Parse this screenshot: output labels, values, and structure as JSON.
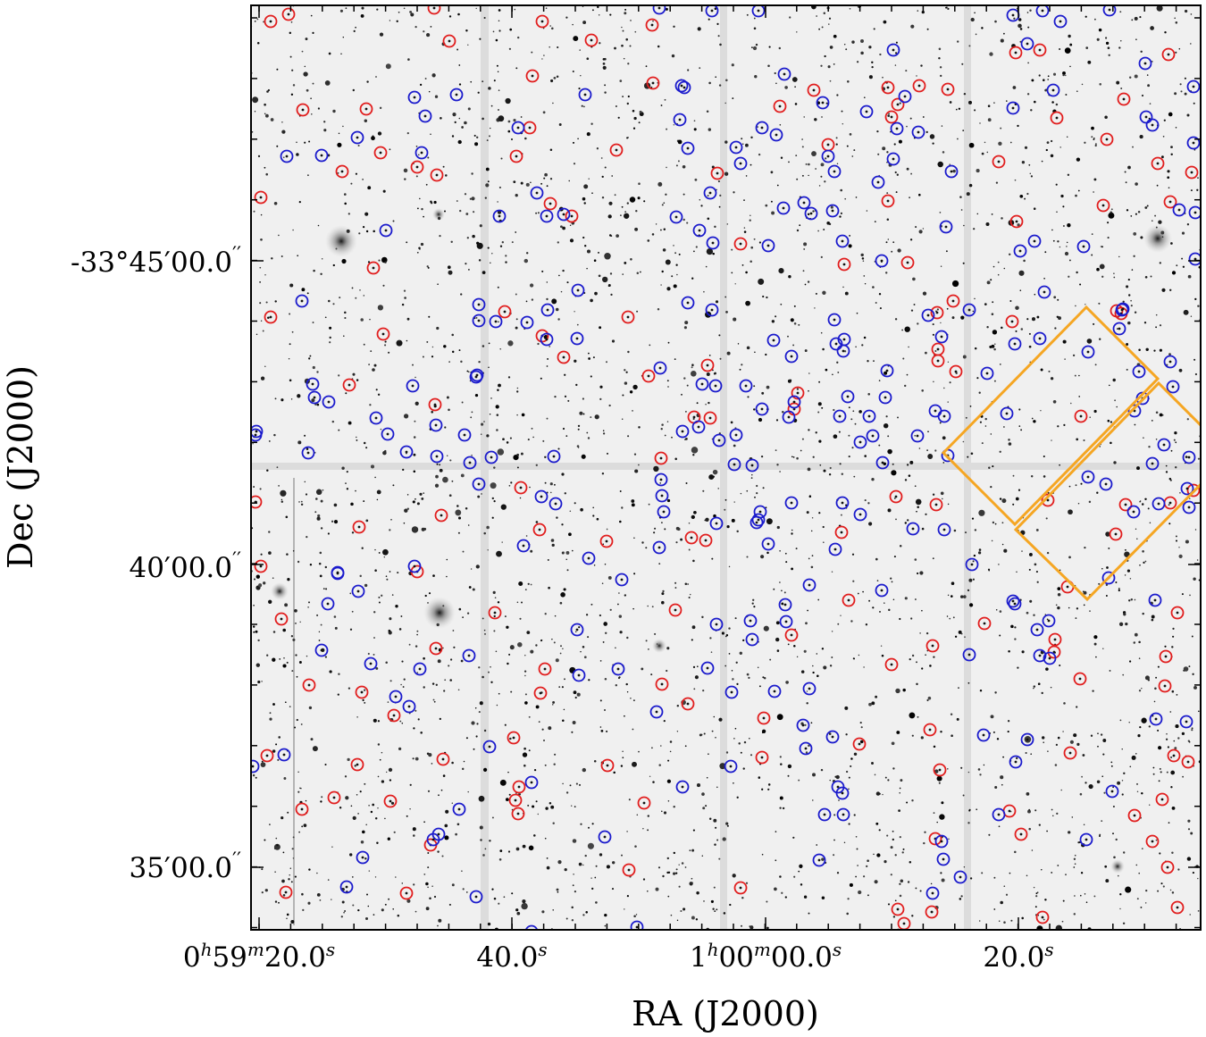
{
  "figure": {
    "x_axis_label": "RA (J2000)",
    "y_axis_label": "Dec (J2000)",
    "x_ticks": [
      {
        "h": "0",
        "m": "59",
        "s": "20.0"
      },
      {
        "s": "40.0"
      },
      {
        "h": "1",
        "m": "00",
        "s": "00.0"
      },
      {
        "s": "20.0"
      }
    ],
    "y_ticks": [
      {
        "deg": "-33°",
        "arcmin": "45′",
        "arcsec": "00.0"
      },
      {
        "arcmin": "40′",
        "arcsec": "00.0"
      },
      {
        "arcmin": "35′",
        "arcsec": "00.0"
      }
    ],
    "colors": {
      "red_circle": "#e11d1d",
      "blue_circle": "#1a1acc",
      "footprint": "#f5a623",
      "sky_background": "#f0f0f0"
    }
  }
}
